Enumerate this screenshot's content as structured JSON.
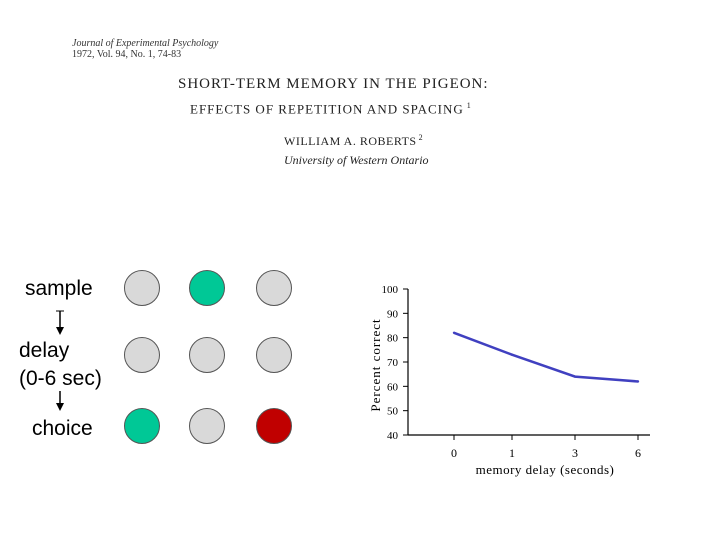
{
  "paper": {
    "journal_line1": "Journal of Experimental Psychology",
    "journal_line2": "1972, Vol. 94, No. 1, 74-83",
    "title_line1": "SHORT-TERM MEMORY IN THE PIGEON:",
    "title_footnote1": "1",
    "title_line2": "EFFECTS OF REPETITION AND SPACING",
    "author": "WILLIAM A. ROBERTS",
    "author_footnote": "2",
    "affiliation": "University of Western Ontario"
  },
  "procedure": {
    "sample_label": "sample",
    "delay_label_line1": "delay",
    "delay_label_line2": "(0-6 sec)",
    "choice_label": "choice"
  },
  "colors": {
    "gray": "#d9d9d9",
    "green": "#00c896",
    "red": "#c00000",
    "line": "#4040c0"
  },
  "stimulus_grid": [
    [
      "gray",
      "green",
      "gray"
    ],
    [
      "gray",
      "gray",
      "gray"
    ],
    [
      "green",
      "gray",
      "red"
    ]
  ],
  "chart_data": {
    "type": "line",
    "x": [
      0,
      1,
      3,
      6
    ],
    "x_tick_labels": [
      "0",
      "1",
      "3",
      "6"
    ],
    "values": [
      82,
      73,
      64,
      62
    ],
    "xlabel": "memory delay (seconds)",
    "ylabel": "Percent correct",
    "ylim": [
      40,
      100
    ],
    "y_ticks": [
      40,
      50,
      60,
      70,
      80,
      90,
      100
    ],
    "y_tick_labels": [
      "40",
      "50",
      "60",
      "70",
      "80",
      "90",
      "100"
    ],
    "grid": false
  }
}
